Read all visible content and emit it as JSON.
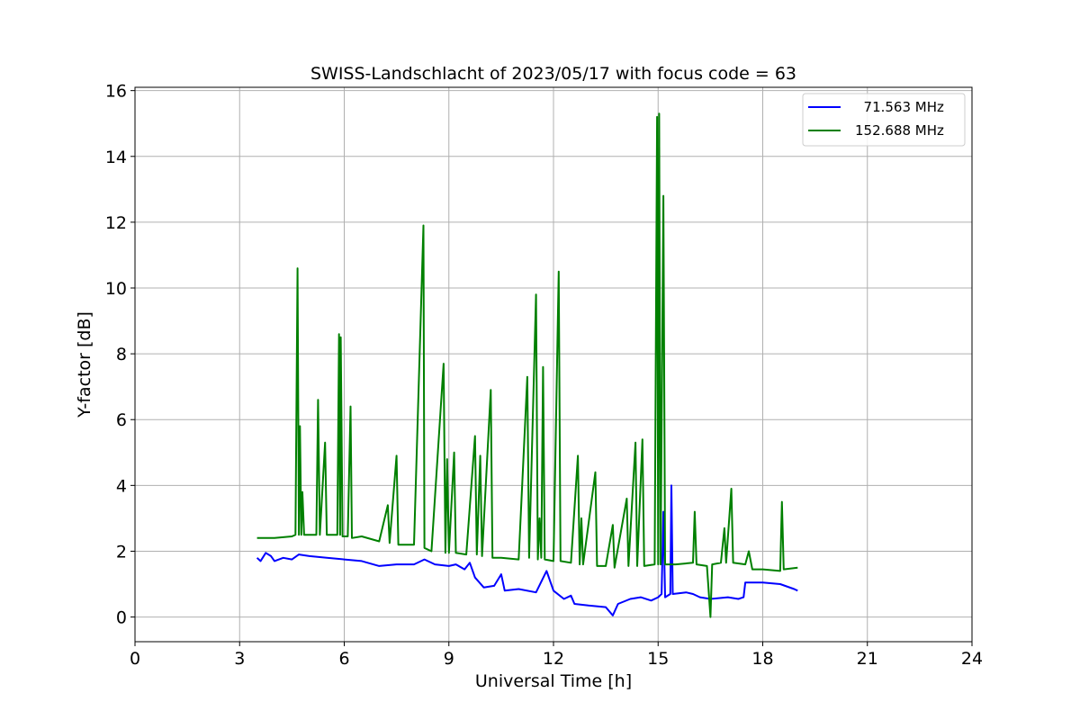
{
  "chart_data": {
    "type": "line",
    "title": "SWISS-Landschlacht of 2023/05/17 with focus code = 63",
    "xlabel": "Universal Time [h]",
    "ylabel": "Y-factor [dB]",
    "xlim": [
      0,
      24
    ],
    "ylim": [
      -0.75,
      16.1
    ],
    "xticks": [
      0,
      3,
      6,
      9,
      12,
      15,
      18,
      21,
      24
    ],
    "yticks": [
      0,
      2,
      4,
      6,
      8,
      10,
      12,
      14,
      16
    ],
    "grid": true,
    "legend_position": "top-right",
    "series": [
      {
        "name": "  71.563 MHz",
        "color": "#0000ff",
        "points": [
          [
            3.5,
            1.8
          ],
          [
            3.6,
            1.7
          ],
          [
            3.75,
            1.95
          ],
          [
            3.9,
            1.85
          ],
          [
            4.0,
            1.7
          ],
          [
            4.25,
            1.8
          ],
          [
            4.5,
            1.75
          ],
          [
            4.7,
            1.9
          ],
          [
            5.0,
            1.85
          ],
          [
            5.5,
            1.8
          ],
          [
            6.0,
            1.75
          ],
          [
            6.5,
            1.7
          ],
          [
            7.0,
            1.55
          ],
          [
            7.5,
            1.6
          ],
          [
            8.0,
            1.6
          ],
          [
            8.3,
            1.75
          ],
          [
            8.6,
            1.6
          ],
          [
            9.0,
            1.55
          ],
          [
            9.2,
            1.6
          ],
          [
            9.45,
            1.45
          ],
          [
            9.6,
            1.65
          ],
          [
            9.75,
            1.2
          ],
          [
            10.0,
            0.9
          ],
          [
            10.3,
            0.95
          ],
          [
            10.5,
            1.3
          ],
          [
            10.6,
            0.8
          ],
          [
            11.0,
            0.85
          ],
          [
            11.5,
            0.75
          ],
          [
            11.8,
            1.4
          ],
          [
            12.0,
            0.8
          ],
          [
            12.3,
            0.55
          ],
          [
            12.5,
            0.65
          ],
          [
            12.6,
            0.4
          ],
          [
            13.0,
            0.35
          ],
          [
            13.5,
            0.3
          ],
          [
            13.7,
            0.05
          ],
          [
            13.85,
            0.4
          ],
          [
            14.2,
            0.55
          ],
          [
            14.5,
            0.6
          ],
          [
            14.8,
            0.5
          ],
          [
            15.0,
            0.6
          ],
          [
            15.1,
            0.7
          ],
          [
            15.15,
            3.2
          ],
          [
            15.2,
            0.6
          ],
          [
            15.35,
            0.7
          ],
          [
            15.38,
            4.0
          ],
          [
            15.42,
            0.7
          ],
          [
            15.8,
            0.75
          ],
          [
            16.0,
            0.7
          ],
          [
            16.2,
            0.6
          ],
          [
            16.5,
            0.55
          ],
          [
            17.0,
            0.6
          ],
          [
            17.3,
            0.55
          ],
          [
            17.45,
            0.6
          ],
          [
            17.5,
            1.05
          ],
          [
            18.0,
            1.05
          ],
          [
            18.5,
            1.0
          ],
          [
            18.9,
            0.85
          ],
          [
            19.0,
            0.8
          ]
        ]
      },
      {
        "name": "152.688 MHz",
        "color": "#008000",
        "points": [
          [
            3.5,
            2.4
          ],
          [
            4.0,
            2.4
          ],
          [
            4.5,
            2.45
          ],
          [
            4.6,
            2.5
          ],
          [
            4.66,
            10.6
          ],
          [
            4.7,
            2.5
          ],
          [
            4.73,
            5.8
          ],
          [
            4.77,
            2.5
          ],
          [
            4.8,
            3.8
          ],
          [
            4.85,
            2.5
          ],
          [
            5.2,
            2.5
          ],
          [
            5.25,
            6.6
          ],
          [
            5.3,
            2.5
          ],
          [
            5.45,
            5.3
          ],
          [
            5.5,
            2.5
          ],
          [
            5.8,
            2.5
          ],
          [
            5.85,
            8.6
          ],
          [
            5.88,
            2.5
          ],
          [
            5.9,
            8.5
          ],
          [
            5.95,
            2.45
          ],
          [
            6.1,
            2.45
          ],
          [
            6.18,
            6.4
          ],
          [
            6.22,
            2.4
          ],
          [
            6.5,
            2.45
          ],
          [
            7.0,
            2.3
          ],
          [
            7.25,
            3.4
          ],
          [
            7.3,
            2.25
          ],
          [
            7.5,
            4.9
          ],
          [
            7.55,
            2.2
          ],
          [
            8.0,
            2.2
          ],
          [
            8.27,
            11.9
          ],
          [
            8.3,
            2.1
          ],
          [
            8.5,
            2.0
          ],
          [
            8.85,
            7.7
          ],
          [
            8.9,
            1.95
          ],
          [
            8.95,
            4.8
          ],
          [
            9.0,
            1.95
          ],
          [
            9.15,
            5.0
          ],
          [
            9.2,
            1.95
          ],
          [
            9.5,
            1.9
          ],
          [
            9.75,
            5.5
          ],
          [
            9.8,
            1.9
          ],
          [
            9.9,
            4.9
          ],
          [
            9.95,
            1.85
          ],
          [
            10.2,
            6.9
          ],
          [
            10.25,
            1.8
          ],
          [
            10.5,
            1.8
          ],
          [
            11.0,
            1.75
          ],
          [
            11.25,
            7.3
          ],
          [
            11.3,
            1.8
          ],
          [
            11.5,
            9.8
          ],
          [
            11.55,
            1.75
          ],
          [
            11.6,
            3.0
          ],
          [
            11.65,
            1.8
          ],
          [
            11.7,
            7.6
          ],
          [
            11.75,
            1.75
          ],
          [
            12.0,
            1.7
          ],
          [
            12.15,
            10.5
          ],
          [
            12.2,
            1.7
          ],
          [
            12.5,
            1.65
          ],
          [
            12.7,
            4.9
          ],
          [
            12.75,
            1.6
          ],
          [
            12.8,
            3.0
          ],
          [
            12.85,
            1.6
          ],
          [
            13.2,
            4.4
          ],
          [
            13.25,
            1.55
          ],
          [
            13.5,
            1.55
          ],
          [
            13.7,
            2.8
          ],
          [
            13.75,
            1.5
          ],
          [
            14.1,
            3.6
          ],
          [
            14.15,
            1.55
          ],
          [
            14.35,
            5.3
          ],
          [
            14.4,
            1.55
          ],
          [
            14.55,
            5.4
          ],
          [
            14.6,
            1.55
          ],
          [
            14.9,
            1.6
          ],
          [
            14.97,
            15.2
          ],
          [
            15.0,
            1.6
          ],
          [
            15.03,
            15.3
          ],
          [
            15.07,
            1.6
          ],
          [
            15.15,
            12.8
          ],
          [
            15.2,
            1.6
          ],
          [
            15.5,
            1.6
          ],
          [
            16.0,
            1.65
          ],
          [
            16.05,
            3.2
          ],
          [
            16.1,
            1.6
          ],
          [
            16.4,
            1.55
          ],
          [
            16.5,
            0.0
          ],
          [
            16.55,
            1.6
          ],
          [
            16.8,
            1.65
          ],
          [
            16.9,
            2.7
          ],
          [
            16.95,
            1.65
          ],
          [
            17.1,
            3.9
          ],
          [
            17.15,
            1.65
          ],
          [
            17.5,
            1.6
          ],
          [
            17.6,
            2.0
          ],
          [
            17.7,
            1.45
          ],
          [
            18.0,
            1.45
          ],
          [
            18.5,
            1.4
          ],
          [
            18.55,
            3.5
          ],
          [
            18.6,
            1.45
          ],
          [
            19.0,
            1.5
          ]
        ]
      }
    ]
  }
}
